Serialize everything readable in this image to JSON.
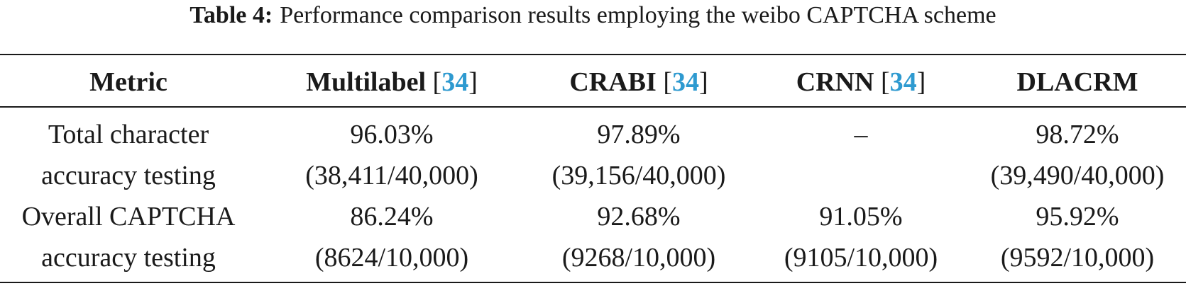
{
  "caption": {
    "label": "Table 4:",
    "text": "Performance comparison results employing the weibo CAPTCHA scheme"
  },
  "header": {
    "metric": "Metric",
    "multilabel": {
      "name": "Multilabel",
      "ref": "34"
    },
    "crabi": {
      "name": "CRABI",
      "ref": "34"
    },
    "crnn": {
      "name": "CRNN",
      "ref": "34"
    },
    "dlacrm": "DLACRM"
  },
  "rows": [
    {
      "metric_line1": "Total character",
      "metric_line2": "accuracy testing",
      "multilabel": {
        "pct": "96.03%",
        "frac": "(38,411/40,000)"
      },
      "crabi": {
        "pct": "97.89%",
        "frac": "(39,156/40,000)"
      },
      "crnn": {
        "pct": "–",
        "frac": ""
      },
      "dlacrm": {
        "pct": "98.72%",
        "frac": "(39,490/40,000)"
      }
    },
    {
      "metric_line1": "Overall CAPTCHA",
      "metric_line2": "accuracy testing",
      "multilabel": {
        "pct": "86.24%",
        "frac": "(8624/10,000)"
      },
      "crabi": {
        "pct": "92.68%",
        "frac": "(9268/10,000)"
      },
      "crnn": {
        "pct": "91.05%",
        "frac": "(9105/10,000)"
      },
      "dlacrm": {
        "pct": "95.92%",
        "frac": "(9592/10,000)"
      }
    }
  ]
}
